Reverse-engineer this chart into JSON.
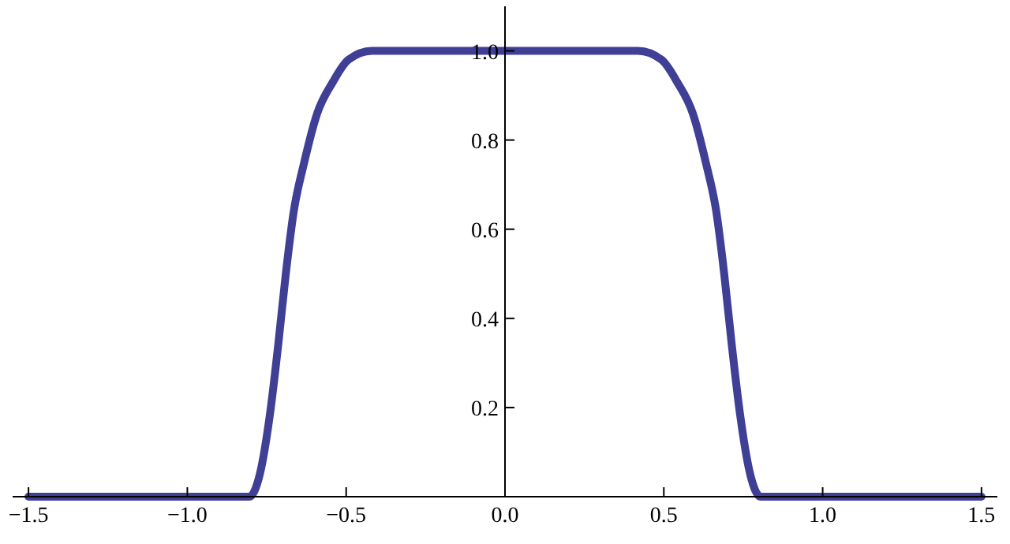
{
  "chart_data": {
    "type": "line",
    "xlim": [
      -1.55,
      1.55
    ],
    "ylim": [
      0,
      1.1
    ],
    "xticks": [
      {
        "value": -1.5,
        "label": "−1.5"
      },
      {
        "value": -1,
        "label": "−1.0"
      },
      {
        "value": -0.5,
        "label": "−0.5"
      },
      {
        "value": 0,
        "label": "0.0"
      },
      0.5,
      {
        "value": 1,
        "label": "1.0"
      },
      1.5
    ],
    "yticks": [
      0.2,
      0.4,
      0.6,
      0.8,
      {
        "value": 1,
        "label": "1.0"
      }
    ],
    "grid": false,
    "marker": "none",
    "line_style": "solid",
    "series": [
      {
        "color": "#3f3f96",
        "x": [
          -1.5,
          -0.805,
          -0.772,
          -0.739,
          -0.714,
          -0.69,
          -0.665,
          -0.632,
          -0.591,
          -0.542,
          -0.493,
          -0.419,
          0,
          0.419,
          0.493,
          0.542,
          0.591,
          0.632,
          0.665,
          0.69,
          0.714,
          0.739,
          0.772,
          0.805,
          1.5
        ],
        "values": [
          0,
          0,
          0.05,
          0.19,
          0.34,
          0.5,
          0.64,
          0.75,
          0.86,
          0.93,
          0.98,
          1,
          1,
          1,
          0.98,
          0.93,
          0.86,
          0.75,
          0.64,
          0.5,
          0.34,
          0.19,
          0.05,
          0,
          0
        ]
      }
    ]
  }
}
